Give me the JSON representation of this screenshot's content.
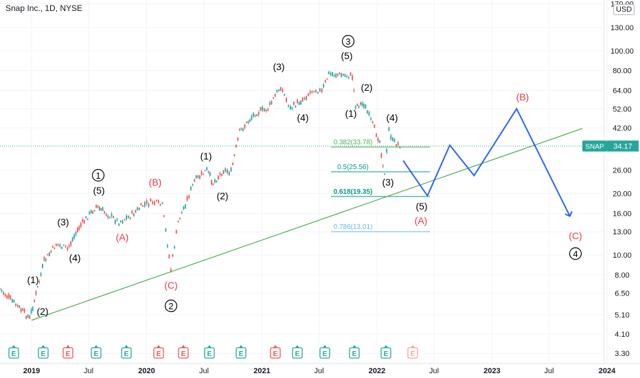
{
  "header": {
    "symbol_title": "Snap Inc., 1D, NYSE",
    "currency": "USD"
  },
  "price_axis": {
    "labels": [
      "170.00",
      "130.00",
      "100.00",
      "80.00",
      "64.00",
      "52.00",
      "42.00",
      "34.17",
      "26.00",
      "20.00",
      "16.00",
      "13.00",
      "10.00",
      "8.00",
      "6.50",
      "5.10",
      "4.10",
      "3.30"
    ],
    "scale": "log"
  },
  "time_axis": {
    "labels": [
      "2019",
      "Jul",
      "2020",
      "Jul",
      "2021",
      "Jul",
      "2022",
      "Jul",
      "2023",
      "Jul",
      "2024"
    ]
  },
  "last_price_tag": {
    "symbol": "SNAP",
    "value": "34.17",
    "color": "#2962ff"
  },
  "colors": {
    "up": "#26a69a",
    "down": "#ef5350",
    "projection": "#2962ff",
    "trendline": "#4caf50",
    "red_label": "#f23645"
  },
  "fib_levels": [
    {
      "label": "0.382(33.78)",
      "value": 33.78,
      "color": "#4caf50"
    },
    {
      "label": "0.5(25.56)",
      "value": 25.56,
      "color": "#089981"
    },
    {
      "label": "0.618(19.35)",
      "value": 19.35,
      "color": "#089981"
    },
    {
      "label": "0.786(13.01)",
      "value": 13.01,
      "color": "#64b5f6"
    }
  ],
  "wave_labels": {
    "black": [
      "(1)",
      "(2)",
      "(3)",
      "(4)",
      "(5)",
      "(1)",
      "(2)",
      "(3)",
      "(4)",
      "(5)",
      "(1)",
      "(2)",
      "(3)",
      "(4)",
      "(5)"
    ],
    "red": [
      "(A)",
      "(B)",
      "(C)",
      "(A)",
      "(B)",
      "(C)"
    ],
    "circled": [
      "1",
      "2",
      "3",
      "4"
    ]
  },
  "earnings_markers": [
    {
      "letter": "E",
      "kind": "past_beat"
    },
    {
      "letter": "E",
      "kind": "past_beat"
    },
    {
      "letter": "E",
      "kind": "past_miss"
    },
    {
      "letter": "E",
      "kind": "past_beat"
    },
    {
      "letter": "E",
      "kind": "past_beat"
    },
    {
      "letter": "E",
      "kind": "past_miss"
    },
    {
      "letter": "E",
      "kind": "past_miss"
    },
    {
      "letter": "E",
      "kind": "past_beat"
    },
    {
      "letter": "E",
      "kind": "past_beat"
    },
    {
      "letter": "E",
      "kind": "past_miss"
    },
    {
      "letter": "E",
      "kind": "past_beat"
    },
    {
      "letter": "E",
      "kind": "past_beat"
    },
    {
      "letter": "E",
      "kind": "past_beat"
    },
    {
      "letter": "E",
      "kind": "past_beat"
    },
    {
      "letter": "E",
      "kind": "upcoming"
    }
  ],
  "chart_data": {
    "type": "line",
    "title": "Snap Inc., 1D, NYSE",
    "y_scale": "log",
    "ylim": [
      3.3,
      170
    ],
    "series": [
      {
        "name": "SNAP",
        "x": [
          "2018-11-15",
          "2018-12-26",
          "2019-01-15",
          "2019-02-10",
          "2019-03-20",
          "2019-04-25",
          "2019-06-01",
          "2019-07-25",
          "2019-08-20",
          "2019-10-05",
          "2019-11-10",
          "2019-12-20",
          "2020-01-20",
          "2020-02-20",
          "2020-03-18",
          "2020-04-10",
          "2020-06-01",
          "2020-07-10",
          "2020-07-30",
          "2020-09-01",
          "2020-09-25",
          "2020-10-22",
          "2020-12-10",
          "2021-01-20",
          "2021-03-01",
          "2021-04-01",
          "2021-05-10",
          "2021-06-15",
          "2021-07-10",
          "2021-08-01",
          "2021-09-10",
          "2021-10-15",
          "2021-10-25",
          "2021-11-20",
          "2022-01-10",
          "2022-01-25",
          "2022-02-08",
          "2022-02-20",
          "2022-03-20"
        ],
        "values": [
          6.8,
          4.9,
          6.4,
          9.3,
          11.3,
          10.7,
          13.7,
          17.3,
          16.2,
          14.5,
          15.5,
          17.5,
          18.2,
          17.5,
          8.5,
          14.5,
          23.0,
          26.0,
          22.5,
          26.0,
          25.5,
          40.0,
          49.5,
          52.0,
          67.0,
          52.0,
          58.0,
          65.0,
          63.0,
          77.0,
          76.0,
          75.0,
          54.0,
          55.0,
          36.0,
          24.5,
          41.0,
          36.0,
          34.17
        ]
      },
      {
        "name": "Projection",
        "x": [
          "2022-03-25",
          "2022-06-10",
          "2022-08-20",
          "2022-11-05",
          "2023-03-20",
          "2023-09-05"
        ],
        "values": [
          29.0,
          19.5,
          34.5,
          24.5,
          52.0,
          15.5
        ]
      }
    ]
  }
}
